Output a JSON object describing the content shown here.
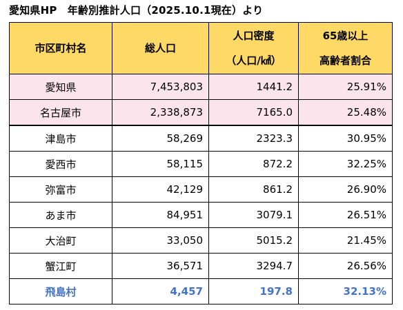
{
  "title": "愛知県HP　年齢別推計人口（2025.10.1現在）より",
  "headers": {
    "col1": "市区町村名",
    "col2": "総人口",
    "col3_line1": "人口密度",
    "col3_line2": "（人口/㎢）",
    "col4_line1": "65歳以上",
    "col4_line2": "高齢者割合"
  },
  "rows": [
    {
      "name": "愛知県",
      "population": "7,453,803",
      "density": "1441.2",
      "elderly": "25.91%"
    },
    {
      "name": "名古屋市",
      "population": "2,338,873",
      "density": "7165.0",
      "elderly": "25.48%"
    },
    {
      "name": "津島市",
      "population": "58,269",
      "density": "2323.3",
      "elderly": "30.95%"
    },
    {
      "name": "愛西市",
      "population": "58,115",
      "density": "872.2",
      "elderly": "32.25%"
    },
    {
      "name": "弥富市",
      "population": "42,129",
      "density": "861.2",
      "elderly": "26.90%"
    },
    {
      "name": "あま市",
      "population": "84,951",
      "density": "3079.1",
      "elderly": "26.51%"
    },
    {
      "name": "大治町",
      "population": "33,050",
      "density": "5015.2",
      "elderly": "21.45%"
    },
    {
      "name": "蟹江町",
      "population": "36,571",
      "density": "3294.7",
      "elderly": "26.56%"
    },
    {
      "name": "飛島村",
      "population": "4,457",
      "density": "197.8",
      "elderly": "32.13%"
    }
  ],
  "colors": {
    "header_bg": "#ffd966",
    "highlight_bg": "#fce4ec",
    "highlight_text": "#4472c4"
  }
}
